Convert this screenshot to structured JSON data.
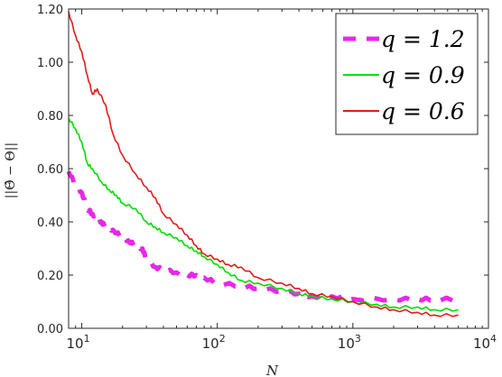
{
  "chart_data": {
    "type": "line",
    "xscale": "log",
    "xlim": [
      8,
      10000
    ],
    "ylim": [
      0,
      1.2
    ],
    "xticks": [
      10,
      100,
      1000,
      10000
    ],
    "xtick_labels": [
      {
        "base": "10",
        "exp": "1"
      },
      {
        "base": "10",
        "exp": "2"
      },
      {
        "base": "10",
        "exp": "3"
      },
      {
        "base": "10",
        "exp": "4"
      }
    ],
    "yticks": [
      0,
      0.2,
      0.4,
      0.6,
      0.8,
      1.0,
      1.2
    ],
    "ytick_labels": [
      "0.00",
      "0.20",
      "0.40",
      "0.60",
      "0.80",
      "1.00",
      "1.20"
    ],
    "xlabel": "N",
    "ylabel": "||Θ̂ − Θ||",
    "grid": false,
    "legend_position": "top-right",
    "series": [
      {
        "name": "q = 1.2",
        "color": "#e628e6",
        "style": "dashed",
        "x": [
          8,
          9,
          10,
          11,
          12,
          13,
          14,
          15,
          17,
          20,
          22,
          25,
          28,
          30,
          35,
          40,
          50,
          60,
          70,
          80,
          100,
          150,
          200,
          300,
          400,
          500,
          700,
          1000,
          2000,
          3000,
          4000,
          6000
        ],
        "y": [
          0.59,
          0.54,
          0.51,
          0.45,
          0.43,
          0.41,
          0.4,
          0.38,
          0.37,
          0.34,
          0.33,
          0.31,
          0.3,
          0.26,
          0.23,
          0.22,
          0.21,
          0.2,
          0.2,
          0.19,
          0.17,
          0.16,
          0.15,
          0.14,
          0.13,
          0.12,
          0.12,
          0.11,
          0.11,
          0.11,
          0.11,
          0.11
        ]
      },
      {
        "name": "q = 0.9",
        "color": "#00dd00",
        "style": "solid",
        "x": [
          8,
          9,
          10,
          11,
          12,
          14,
          16,
          18,
          20,
          25,
          30,
          35,
          40,
          50,
          60,
          70,
          80,
          100,
          120,
          150,
          200,
          300,
          400,
          500,
          700,
          1000,
          1500,
          2000,
          3000,
          4000,
          6000
        ],
        "y": [
          0.79,
          0.75,
          0.7,
          0.62,
          0.6,
          0.55,
          0.52,
          0.5,
          0.47,
          0.45,
          0.4,
          0.38,
          0.36,
          0.34,
          0.31,
          0.29,
          0.27,
          0.24,
          0.21,
          0.18,
          0.17,
          0.15,
          0.13,
          0.12,
          0.11,
          0.1,
          0.09,
          0.08,
          0.08,
          0.07,
          0.07
        ]
      },
      {
        "name": "q = 0.6",
        "color": "#e41a1c",
        "style": "solid",
        "x": [
          8,
          9,
          10,
          11,
          12,
          13,
          15,
          17,
          20,
          25,
          30,
          35,
          40,
          50,
          60,
          70,
          80,
          100,
          120,
          150,
          200,
          300,
          400,
          500,
          700,
          1000,
          1500,
          2000,
          3000,
          4000,
          6000
        ],
        "y": [
          1.19,
          1.1,
          1.04,
          0.95,
          0.88,
          0.9,
          0.84,
          0.73,
          0.65,
          0.58,
          0.53,
          0.49,
          0.43,
          0.39,
          0.35,
          0.31,
          0.28,
          0.26,
          0.24,
          0.23,
          0.19,
          0.17,
          0.15,
          0.13,
          0.12,
          0.1,
          0.08,
          0.07,
          0.06,
          0.05,
          0.05
        ]
      }
    ]
  }
}
